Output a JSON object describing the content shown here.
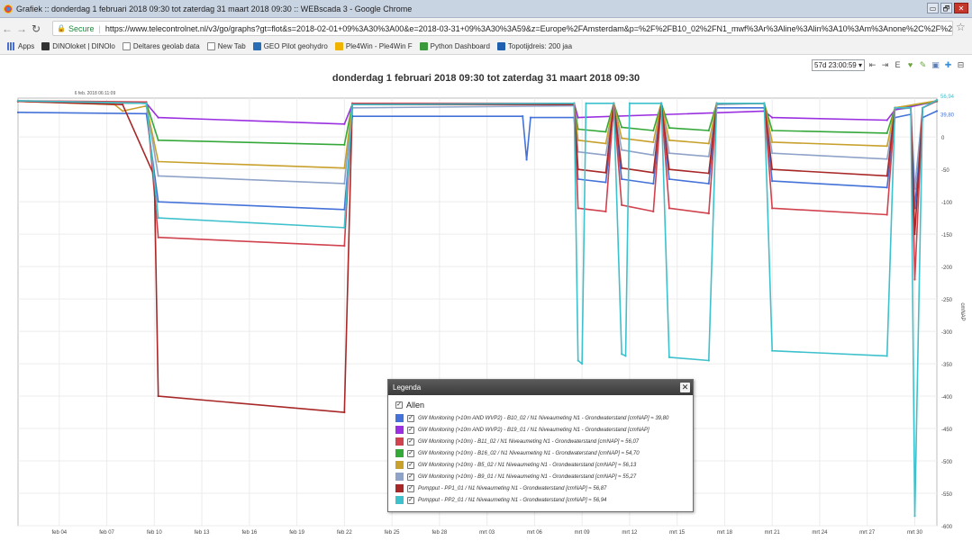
{
  "window": {
    "title": "Grafiek :: donderdag 1 februari 2018 09:30 tot zaterdag 31 maart 2018 09:30 :: WEBscada 3 - Google Chrome",
    "controls": [
      "▭",
      "🗗",
      "✕"
    ]
  },
  "address": {
    "secure_label": "Secure",
    "url": "https://www.telecontrolnet.nl/v3/go/graphs?gt=flot&s=2018-02-01+09%3A30%3A00&e=2018-03-31+09%3A30%3A59&z=Europe%2FAmsterdam&p=%2F%2FB10_02%2FN1_mwf%3Ar%3Aline%3Alin%3A10%3Am%3Anone%2C%2F%2FB11_02%2FN1_mwf%3Ar%3Aline..."
  },
  "bookmarks": [
    {
      "label": "Apps",
      "icon": "apps-icon",
      "color": "#4a6fd1"
    },
    {
      "label": "DINOloket | DINOlo",
      "icon": "dinoloket-icon",
      "color": "#333333"
    },
    {
      "label": "Deltares geolab data",
      "icon": "page-icon",
      "color": "#ffffff"
    },
    {
      "label": "New Tab",
      "icon": "page-icon",
      "color": "#ffffff"
    },
    {
      "label": "GEO Pilot geohydro",
      "icon": "sp-icon",
      "color": "#2a6db5"
    },
    {
      "label": "Ple4Win - Ple4Win F",
      "icon": "ple4win-icon",
      "color": "#f0b400"
    },
    {
      "label": "Python Dashboard",
      "icon": "python-icon",
      "color": "#3b9a3b"
    },
    {
      "label": "Topotijdreis: 200 jaa",
      "icon": "topo-icon",
      "color": "#1f5fb0"
    }
  ],
  "toolbar": {
    "period": "57d 23:00:59 ▾",
    "buttons": [
      "⇤",
      "⇥",
      "E",
      "♥",
      "✎",
      "▣",
      "✚",
      "⊟"
    ]
  },
  "legend": {
    "title": "Legenda",
    "close": "✕",
    "all_label": "Allen",
    "items": [
      {
        "label": "GW Monitoring (>10m AND WVP2) - B10_02 / N1 Niveaumeting N1 - Grondwaterstand [cmNAP] ≈ 39,80",
        "color": "#4472d8"
      },
      {
        "label": "GW Monitoring (>10m AND WVP2) - B19_01 / N1 Niveaumeting N1 - Grondwaterstand [cmNAP]",
        "color": "#9b30e0"
      },
      {
        "label": "GW Monitoring (>10m) - B11_02 / N1 Niveaumeting N1 - Grondwaterstand [cmNAP] ≈ 56,07",
        "color": "#d0424e"
      },
      {
        "label": "GW Monitoring (>10m) - B16_02 / N1 Niveaumeting N1 - Grondwaterstand [cmNAP] ≈ 54,70",
        "color": "#35a83a"
      },
      {
        "label": "GW Monitoring (>10m) - B5_02 / N1 Niveaumeting N1 - Grondwaterstand [cmNAP] ≈ 56,13",
        "color": "#c8a02c"
      },
      {
        "label": "GW Monitoring (>10m) - B9_01 / N1 Niveaumeting N1 - Grondwaterstand [cmNAP] ≈ 55,27",
        "color": "#8fa3c8"
      },
      {
        "label": "Pompput - PP1_01 / N1 Niveaumeting N1 - Grondwaterstand [cmNAP] ≈ 56,87",
        "color": "#a82828"
      },
      {
        "label": "Pompput - PP2_01 / N1 Niveaumeting N1 - Grondwaterstand [cmNAP] ≈ 56,94",
        "color": "#3ec1cc"
      }
    ]
  },
  "chart_data": {
    "type": "line",
    "title": "donderdag 1 februari 2018 09:30 tot zaterdag 31 maart 2018 09:30",
    "ylabel": "cmNAP",
    "ylim": [
      -600,
      60
    ],
    "xlim": [
      "2018-02-01 09:30",
      "2018-03-31 09:30"
    ],
    "grid": true,
    "x_ticks": [
      "2018-02-04",
      "2018-02-07",
      "2018-02-10",
      "2018-02-13",
      "2018-02-16",
      "2018-02-19",
      "2018-02-22",
      "2018-02-25",
      "2018-02-28",
      "2018-03-03",
      "2018-03-06",
      "2018-03-09",
      "2018-03-12",
      "2018-03-15",
      "2018-03-18",
      "2018-03-21",
      "2018-03-24",
      "2018-03-27",
      "2018-03-30"
    ],
    "x_tick_labels": [
      "feb 04",
      "feb 07",
      "feb 10",
      "feb 13",
      "feb 16",
      "feb 19",
      "feb 22",
      "feb 25",
      "feb 28",
      "mrt 03",
      "mrt 06",
      "mrt 09",
      "mrt 12",
      "mrt 15",
      "mrt 18",
      "mrt 21",
      "mrt 24",
      "mrt 27",
      "mrt 30"
    ],
    "y_ticks": [
      0,
      -50,
      -100,
      -150,
      -200,
      -250,
      -300,
      -350,
      -400,
      -450,
      -500,
      -550,
      -600
    ],
    "y_tick_labels": [
      "0",
      "-50",
      "-100",
      "-150",
      "-200",
      "-250",
      "-300",
      "-350",
      "-400",
      "-450",
      "-500",
      "-550",
      "-600"
    ],
    "annotations": [
      {
        "text": "6 feb. 2018 06:11:09",
        "x": "2018-02-06 06:11",
        "y": 60
      },
      {
        "text": "56,94",
        "x": "2018-03-31 09:30",
        "y": 56.94,
        "color": "#3ec1cc"
      },
      {
        "text": "39,80",
        "x": "2018-03-31 09:30",
        "y": 39.8,
        "color": "#4472d8"
      }
    ],
    "series": [
      {
        "label": "GW Monitoring (>10m) - B9_01 / N1 Niveaumeting N1 - Grondwaterstand [cmNAP] ≈ 55,27",
        "color": "#8fa3c8",
        "points": [
          [
            "2018-02-01 09:30",
            55
          ],
          [
            "2018-02-09 12:00",
            52
          ],
          [
            "2018-02-10 06:00",
            -60
          ],
          [
            "2018-02-22 00:00",
            -72
          ],
          [
            "2018-02-22 12:00",
            45
          ],
          [
            "2018-03-08 12:00",
            48
          ],
          [
            "2018-03-08 18:00",
            -23
          ],
          [
            "2018-03-10 12:00",
            -28
          ],
          [
            "2018-03-11 00:00",
            50
          ],
          [
            "2018-03-11 12:00",
            -20
          ],
          [
            "2018-03-13 12:00",
            -28
          ],
          [
            "2018-03-14 00:00",
            50
          ],
          [
            "2018-03-14 12:00",
            -25
          ],
          [
            "2018-03-17 00:00",
            -30
          ],
          [
            "2018-03-17 12:00",
            50
          ],
          [
            "2018-03-20 12:00",
            52
          ],
          [
            "2018-03-21 00:00",
            -25
          ],
          [
            "2018-03-28 06:00",
            -34
          ],
          [
            "2018-03-28 18:00",
            42
          ],
          [
            "2018-03-29 18:00",
            45
          ],
          [
            "2018-03-30 00:00",
            -80
          ],
          [
            "2018-03-30 12:00",
            45
          ],
          [
            "2018-03-31 09:30",
            55
          ]
        ]
      },
      {
        "label": "GW Monitoring (>10m AND WVP2) - B10_02 / N1 Niveaumeting N1 - Grondwaterstand [cmNAP] ≈ 39,80",
        "color": "#4472d8",
        "points": [
          [
            "2018-02-01 09:30",
            38
          ],
          [
            "2018-02-09 12:00",
            36
          ],
          [
            "2018-02-10 06:00",
            -100
          ],
          [
            "2018-02-22 00:00",
            -112
          ],
          [
            "2018-02-22 12:00",
            32
          ],
          [
            "2018-03-05 06:00",
            32
          ],
          [
            "2018-03-05 12:00",
            -35
          ],
          [
            "2018-03-05 18:00",
            30
          ],
          [
            "2018-03-08 12:00",
            30
          ],
          [
            "2018-03-08 18:00",
            -65
          ],
          [
            "2018-03-10 12:00",
            -70
          ],
          [
            "2018-03-11 00:00",
            42
          ],
          [
            "2018-03-11 12:00",
            -65
          ],
          [
            "2018-03-13 12:00",
            -72
          ],
          [
            "2018-03-14 00:00",
            45
          ],
          [
            "2018-03-14 12:00",
            -65
          ],
          [
            "2018-03-17 00:00",
            -72
          ],
          [
            "2018-03-17 12:00",
            45
          ],
          [
            "2018-03-20 12:00",
            45
          ],
          [
            "2018-03-21 00:00",
            -68
          ],
          [
            "2018-03-28 06:00",
            -78
          ],
          [
            "2018-03-28 18:00",
            30
          ],
          [
            "2018-03-29 18:00",
            35
          ],
          [
            "2018-03-30 00:00",
            -110
          ],
          [
            "2018-03-30 12:00",
            30
          ],
          [
            "2018-03-31 09:30",
            40
          ]
        ]
      },
      {
        "label": "GW Monitoring (>10m AND WVP2) - B19_01 / N1 Niveaumeting N1 - Grondwaterstand [cmNAP]",
        "color": "#9b30e0",
        "points": [
          [
            "2018-02-01 09:30",
            55
          ],
          [
            "2018-02-09 12:00",
            52
          ],
          [
            "2018-02-10 06:00",
            30
          ],
          [
            "2018-02-22 00:00",
            20
          ],
          [
            "2018-02-22 12:00",
            50
          ],
          [
            "2018-03-08 12:00",
            52
          ],
          [
            "2018-03-08 18:00",
            30
          ],
          [
            "2018-03-20 12:00",
            40
          ],
          [
            "2018-03-21 00:00",
            30
          ],
          [
            "2018-03-28 06:00",
            26
          ],
          [
            "2018-03-28 18:00",
            42
          ],
          [
            "2018-03-31 09:30",
            55
          ]
        ]
      },
      {
        "label": "GW Monitoring (>10m) - B16_02 / N1 Niveaumeting N1 - Grondwaterstand [cmNAP] ≈ 54,70",
        "color": "#35a83a",
        "points": [
          [
            "2018-02-01 09:30",
            55
          ],
          [
            "2018-02-09 12:00",
            52
          ],
          [
            "2018-02-10 06:00",
            -5
          ],
          [
            "2018-02-22 00:00",
            -12
          ],
          [
            "2018-02-22 12:00",
            50
          ],
          [
            "2018-03-08 12:00",
            50
          ],
          [
            "2018-03-08 18:00",
            12
          ],
          [
            "2018-03-10 12:00",
            8
          ],
          [
            "2018-03-11 00:00",
            52
          ],
          [
            "2018-03-11 12:00",
            15
          ],
          [
            "2018-03-13 12:00",
            10
          ],
          [
            "2018-03-14 00:00",
            52
          ],
          [
            "2018-03-14 12:00",
            14
          ],
          [
            "2018-03-17 00:00",
            10
          ],
          [
            "2018-03-17 12:00",
            52
          ],
          [
            "2018-03-20 12:00",
            52
          ],
          [
            "2018-03-21 00:00",
            10
          ],
          [
            "2018-03-28 06:00",
            6
          ],
          [
            "2018-03-28 18:00",
            45
          ],
          [
            "2018-03-31 09:30",
            55
          ]
        ]
      },
      {
        "label": "GW Monitoring (>10m) - B5_02 / N1 Niveaumeting N1 - Grondwaterstand [cmNAP] ≈ 56,13",
        "color": "#c8a02c",
        "points": [
          [
            "2018-02-01 09:30",
            55
          ],
          [
            "2018-02-07 12:00",
            50
          ],
          [
            "2018-02-08 00:00",
            40
          ],
          [
            "2018-02-09 12:00",
            48
          ],
          [
            "2018-02-10 06:00",
            -38
          ],
          [
            "2018-02-22 00:00",
            -48
          ],
          [
            "2018-02-22 12:00",
            50
          ],
          [
            "2018-03-08 12:00",
            50
          ],
          [
            "2018-03-08 18:00",
            -5
          ],
          [
            "2018-03-10 12:00",
            -10
          ],
          [
            "2018-03-11 00:00",
            52
          ],
          [
            "2018-03-11 12:00",
            -2
          ],
          [
            "2018-03-13 12:00",
            -8
          ],
          [
            "2018-03-14 00:00",
            52
          ],
          [
            "2018-03-14 12:00",
            -5
          ],
          [
            "2018-03-17 00:00",
            -10
          ],
          [
            "2018-03-17 12:00",
            52
          ],
          [
            "2018-03-20 12:00",
            52
          ],
          [
            "2018-03-21 00:00",
            -8
          ],
          [
            "2018-03-28 06:00",
            -14
          ],
          [
            "2018-03-28 18:00",
            45
          ],
          [
            "2018-03-31 09:30",
            56
          ]
        ]
      },
      {
        "label": "GW Monitoring (>10m) - B11_02 / N1 Niveaumeting N1 - Grondwaterstand [cmNAP] ≈ 56,07",
        "color": "#d0424e",
        "points": [
          [
            "2018-02-01 09:30",
            56
          ],
          [
            "2018-02-09 12:00",
            54
          ],
          [
            "2018-02-10 06:00",
            -155
          ],
          [
            "2018-02-22 00:00",
            -168
          ],
          [
            "2018-02-22 12:00",
            52
          ],
          [
            "2018-03-08 12:00",
            52
          ],
          [
            "2018-03-08 18:00",
            -110
          ],
          [
            "2018-03-10 12:00",
            -115
          ],
          [
            "2018-03-11 00:00",
            52
          ],
          [
            "2018-03-11 12:00",
            -105
          ],
          [
            "2018-03-13 12:00",
            -115
          ],
          [
            "2018-03-14 00:00",
            52
          ],
          [
            "2018-03-14 12:00",
            -110
          ],
          [
            "2018-03-17 00:00",
            -118
          ],
          [
            "2018-03-17 12:00",
            52
          ],
          [
            "2018-03-20 12:00",
            52
          ],
          [
            "2018-03-21 00:00",
            -110
          ],
          [
            "2018-03-28 06:00",
            -120
          ],
          [
            "2018-03-28 18:00",
            45
          ],
          [
            "2018-03-29 18:00",
            45
          ],
          [
            "2018-03-30 00:00",
            -220
          ],
          [
            "2018-03-30 12:00",
            45
          ],
          [
            "2018-03-31 09:30",
            56
          ]
        ]
      },
      {
        "label": "Pompput - PP1_01 / N1 Niveaumeting N1 - Grondwaterstand [cmNAP] ≈ 56,87",
        "color": "#a82828",
        "points": [
          [
            "2018-02-01 09:30",
            55
          ],
          [
            "2018-02-08 00:00",
            50
          ],
          [
            "2018-02-10 00:00",
            -60
          ],
          [
            "2018-02-10 06:00",
            -400
          ],
          [
            "2018-02-22 00:00",
            -425
          ],
          [
            "2018-02-22 12:00",
            50
          ],
          [
            "2018-03-08 12:00",
            50
          ],
          [
            "2018-03-08 18:00",
            -50
          ],
          [
            "2018-03-10 12:00",
            -55
          ],
          [
            "2018-03-11 00:00",
            52
          ],
          [
            "2018-03-11 12:00",
            -48
          ],
          [
            "2018-03-13 12:00",
            -55
          ],
          [
            "2018-03-14 00:00",
            52
          ],
          [
            "2018-03-14 12:00",
            -50
          ],
          [
            "2018-03-17 00:00",
            -56
          ],
          [
            "2018-03-17 12:00",
            52
          ],
          [
            "2018-03-20 12:00",
            52
          ],
          [
            "2018-03-21 00:00",
            -50
          ],
          [
            "2018-03-28 06:00",
            -60
          ],
          [
            "2018-03-28 18:00",
            45
          ],
          [
            "2018-03-29 18:00",
            45
          ],
          [
            "2018-03-30 00:00",
            -150
          ],
          [
            "2018-03-30 12:00",
            45
          ],
          [
            "2018-03-31 09:30",
            57
          ]
        ]
      },
      {
        "label": "Pompput - PP2_01 / N1 Niveaumeting N1 - Grondwaterstand [cmNAP] ≈ 56,94",
        "color": "#3ec1cc",
        "points": [
          [
            "2018-02-01 09:30",
            56
          ],
          [
            "2018-02-09 12:00",
            52
          ],
          [
            "2018-02-10 06:00",
            -125
          ],
          [
            "2018-02-22 00:00",
            -140
          ],
          [
            "2018-02-22 12:00",
            50
          ],
          [
            "2018-03-08 12:00",
            52
          ],
          [
            "2018-03-08 18:00",
            -345
          ],
          [
            "2018-03-09 00:00",
            -350
          ],
          [
            "2018-03-09 06:00",
            52
          ],
          [
            "2018-03-11 00:00",
            52
          ],
          [
            "2018-03-11 12:00",
            -335
          ],
          [
            "2018-03-11 18:00",
            -338
          ],
          [
            "2018-03-12 00:00",
            52
          ],
          [
            "2018-03-14 00:00",
            52
          ],
          [
            "2018-03-14 12:00",
            -340
          ],
          [
            "2018-03-17 00:00",
            -345
          ],
          [
            "2018-03-17 12:00",
            52
          ],
          [
            "2018-03-20 12:00",
            52
          ],
          [
            "2018-03-21 00:00",
            -330
          ],
          [
            "2018-03-28 06:00",
            -338
          ],
          [
            "2018-03-28 18:00",
            45
          ],
          [
            "2018-03-29 18:00",
            45
          ],
          [
            "2018-03-30 00:00",
            -585
          ],
          [
            "2018-03-30 12:00",
            45
          ],
          [
            "2018-03-31 09:30",
            57
          ]
        ]
      }
    ]
  }
}
